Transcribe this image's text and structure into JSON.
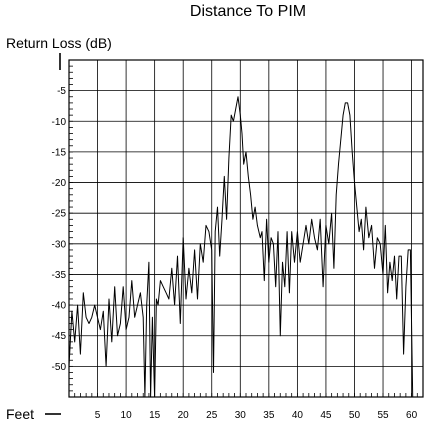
{
  "chart_data": {
    "type": "line",
    "title": "Distance To PIM",
    "ylabel": "Return Loss (dB)",
    "xlabel": "Feet",
    "xlim": [
      0,
      62
    ],
    "ylim": [
      -55,
      0
    ],
    "x_ticks": [
      5,
      10,
      15,
      20,
      25,
      30,
      35,
      40,
      45,
      50,
      55,
      60
    ],
    "y_ticks": [
      -5,
      -10,
      -15,
      -20,
      -25,
      -30,
      -35,
      -40,
      -45,
      -50
    ],
    "grid": true,
    "series": [
      {
        "color": "#000000",
        "points": [
          [
            0.0,
            -50
          ],
          [
            0.5,
            -41
          ],
          [
            1.0,
            -46
          ],
          [
            1.5,
            -40
          ],
          [
            2.0,
            -48
          ],
          [
            2.5,
            -38
          ],
          [
            3.0,
            -42
          ],
          [
            3.5,
            -43
          ],
          [
            4.0,
            -42
          ],
          [
            4.5,
            -40
          ],
          [
            5.0,
            -42
          ],
          [
            5.5,
            -44
          ],
          [
            6.0,
            -41
          ],
          [
            6.5,
            -50
          ],
          [
            7.0,
            -39
          ],
          [
            7.5,
            -46
          ],
          [
            8.0,
            -37
          ],
          [
            8.5,
            -45
          ],
          [
            9.0,
            -43
          ],
          [
            9.5,
            -37
          ],
          [
            10.0,
            -44
          ],
          [
            10.5,
            -42
          ],
          [
            11.0,
            -36
          ],
          [
            11.5,
            -42
          ],
          [
            12.0,
            -40
          ],
          [
            12.5,
            -38
          ],
          [
            13.0,
            -42
          ],
          [
            13.3,
            -55
          ],
          [
            13.6,
            -40
          ],
          [
            14.0,
            -33
          ],
          [
            14.3,
            -55
          ],
          [
            14.6,
            -42
          ],
          [
            15.0,
            -55
          ],
          [
            15.3,
            -39
          ],
          [
            15.6,
            -40
          ],
          [
            16.0,
            -36
          ],
          [
            16.5,
            -37
          ],
          [
            17.0,
            -38
          ],
          [
            17.5,
            -39
          ],
          [
            18.0,
            -34
          ],
          [
            18.5,
            -40
          ],
          [
            19.0,
            -32
          ],
          [
            19.5,
            -43
          ],
          [
            20.0,
            -29
          ],
          [
            20.5,
            -39
          ],
          [
            21.0,
            -34
          ],
          [
            21.5,
            -38
          ],
          [
            22.0,
            -31
          ],
          [
            22.5,
            -39
          ],
          [
            23.0,
            -30
          ],
          [
            23.5,
            -33
          ],
          [
            24.0,
            -27
          ],
          [
            24.5,
            -28
          ],
          [
            25.0,
            -31
          ],
          [
            25.3,
            -51
          ],
          [
            25.6,
            -28
          ],
          [
            26.0,
            -24
          ],
          [
            26.4,
            -32
          ],
          [
            26.8,
            -26
          ],
          [
            27.2,
            -19
          ],
          [
            27.6,
            -26
          ],
          [
            28.0,
            -16
          ],
          [
            28.4,
            -9
          ],
          [
            28.8,
            -10
          ],
          [
            29.2,
            -8
          ],
          [
            29.6,
            -6
          ],
          [
            30.0,
            -9
          ],
          [
            30.3,
            -12
          ],
          [
            30.6,
            -17
          ],
          [
            31.0,
            -15
          ],
          [
            31.4,
            -19
          ],
          [
            31.8,
            -22
          ],
          [
            32.2,
            -26
          ],
          [
            32.6,
            -24
          ],
          [
            33.0,
            -27
          ],
          [
            33.5,
            -29
          ],
          [
            33.8,
            -28
          ],
          [
            34.2,
            -36
          ],
          [
            34.6,
            -26
          ],
          [
            35.0,
            -33
          ],
          [
            35.4,
            -29
          ],
          [
            35.8,
            -30
          ],
          [
            36.2,
            -37
          ],
          [
            36.6,
            -28
          ],
          [
            37.0,
            -45
          ],
          [
            37.4,
            -33
          ],
          [
            37.8,
            -37
          ],
          [
            38.2,
            -28
          ],
          [
            38.6,
            -38
          ],
          [
            39.0,
            -28
          ],
          [
            39.5,
            -33
          ],
          [
            40.0,
            -28
          ],
          [
            40.5,
            -33
          ],
          [
            41.0,
            -30
          ],
          [
            41.5,
            -27
          ],
          [
            42.0,
            -30
          ],
          [
            42.5,
            -26
          ],
          [
            43.0,
            -29
          ],
          [
            43.5,
            -31
          ],
          [
            44.0,
            -26
          ],
          [
            44.5,
            -37
          ],
          [
            45.0,
            -27
          ],
          [
            45.5,
            -30
          ],
          [
            46.0,
            -25
          ],
          [
            46.4,
            -34
          ],
          [
            46.8,
            -22
          ],
          [
            47.2,
            -17
          ],
          [
            47.6,
            -13
          ],
          [
            48.0,
            -9
          ],
          [
            48.4,
            -7
          ],
          [
            48.8,
            -7
          ],
          [
            49.2,
            -9
          ],
          [
            49.6,
            -15
          ],
          [
            50.0,
            -20
          ],
          [
            50.4,
            -24
          ],
          [
            50.8,
            -28
          ],
          [
            51.2,
            -26
          ],
          [
            51.6,
            -31
          ],
          [
            52.0,
            -24
          ],
          [
            52.5,
            -29
          ],
          [
            53.0,
            -27
          ],
          [
            53.5,
            -34
          ],
          [
            54.0,
            -29
          ],
          [
            54.5,
            -30
          ],
          [
            55.0,
            -35
          ],
          [
            55.4,
            -27
          ],
          [
            55.8,
            -38
          ],
          [
            56.2,
            -33
          ],
          [
            56.6,
            -36
          ],
          [
            57.0,
            -32
          ],
          [
            57.4,
            -39
          ],
          [
            57.8,
            -32
          ],
          [
            58.2,
            -32
          ],
          [
            58.6,
            -48
          ],
          [
            59.0,
            -37
          ],
          [
            59.4,
            -31
          ],
          [
            59.8,
            -31
          ],
          [
            60.2,
            -55
          ]
        ]
      }
    ]
  }
}
